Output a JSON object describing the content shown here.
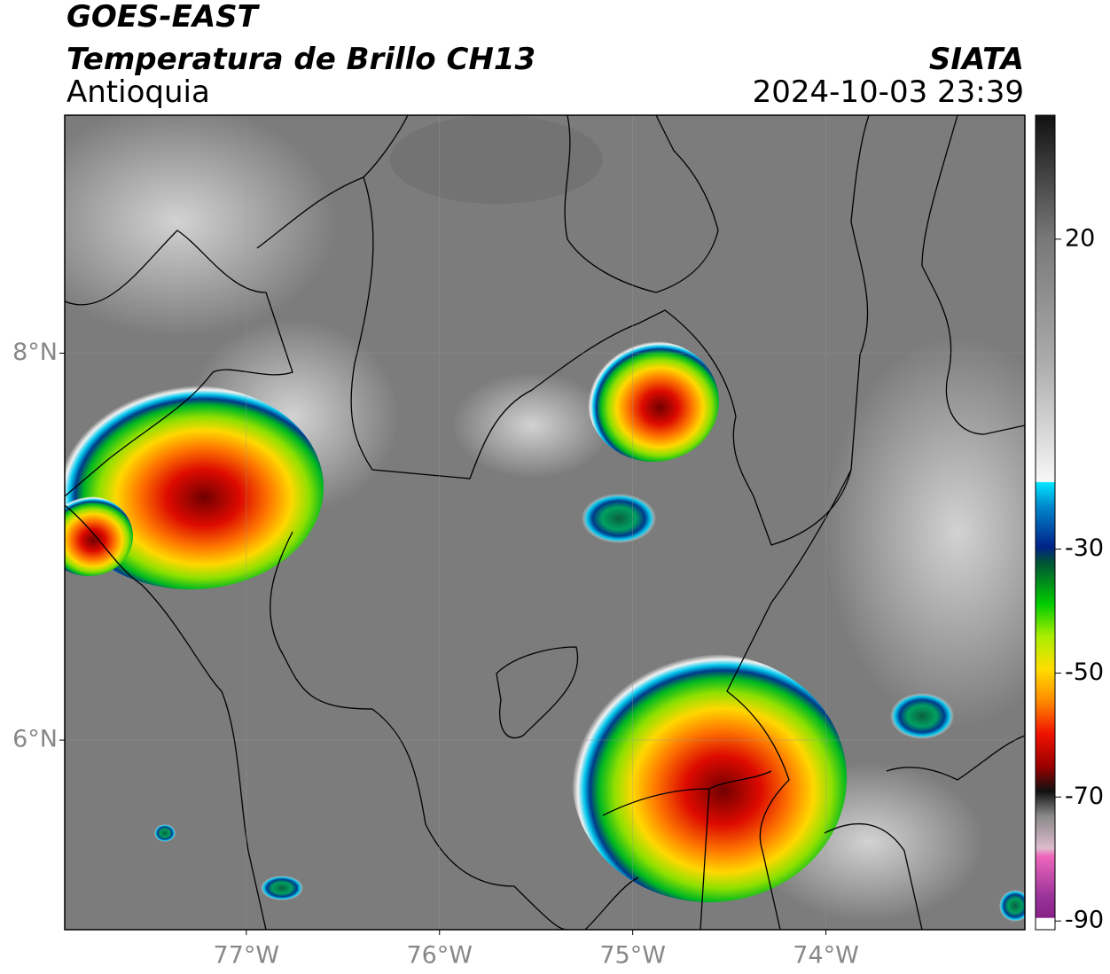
{
  "header": {
    "satellite": "GOES-EAST",
    "product": "Temperatura de Brillo CH13",
    "region": "Antioquia",
    "source": "SIATA",
    "timestamp": "2024-10-03 23:39"
  },
  "map": {
    "lon_range": [
      -77.94,
      -72.97
    ],
    "lat_range": [
      9.23,
      5.02
    ],
    "lon_ticks": [
      {
        "value": -77,
        "label": "77°W"
      },
      {
        "value": -76,
        "label": "76°W"
      },
      {
        "value": -75,
        "label": "75°W"
      },
      {
        "value": -74,
        "label": "74°W"
      }
    ],
    "lat_ticks": [
      {
        "value": 8,
        "label": "8°N"
      },
      {
        "value": 6,
        "label": "6°N"
      }
    ]
  },
  "colorbar": {
    "range": [
      40,
      -91.4
    ],
    "ticks": [
      20,
      -30,
      -50,
      -70,
      -90
    ]
  }
}
